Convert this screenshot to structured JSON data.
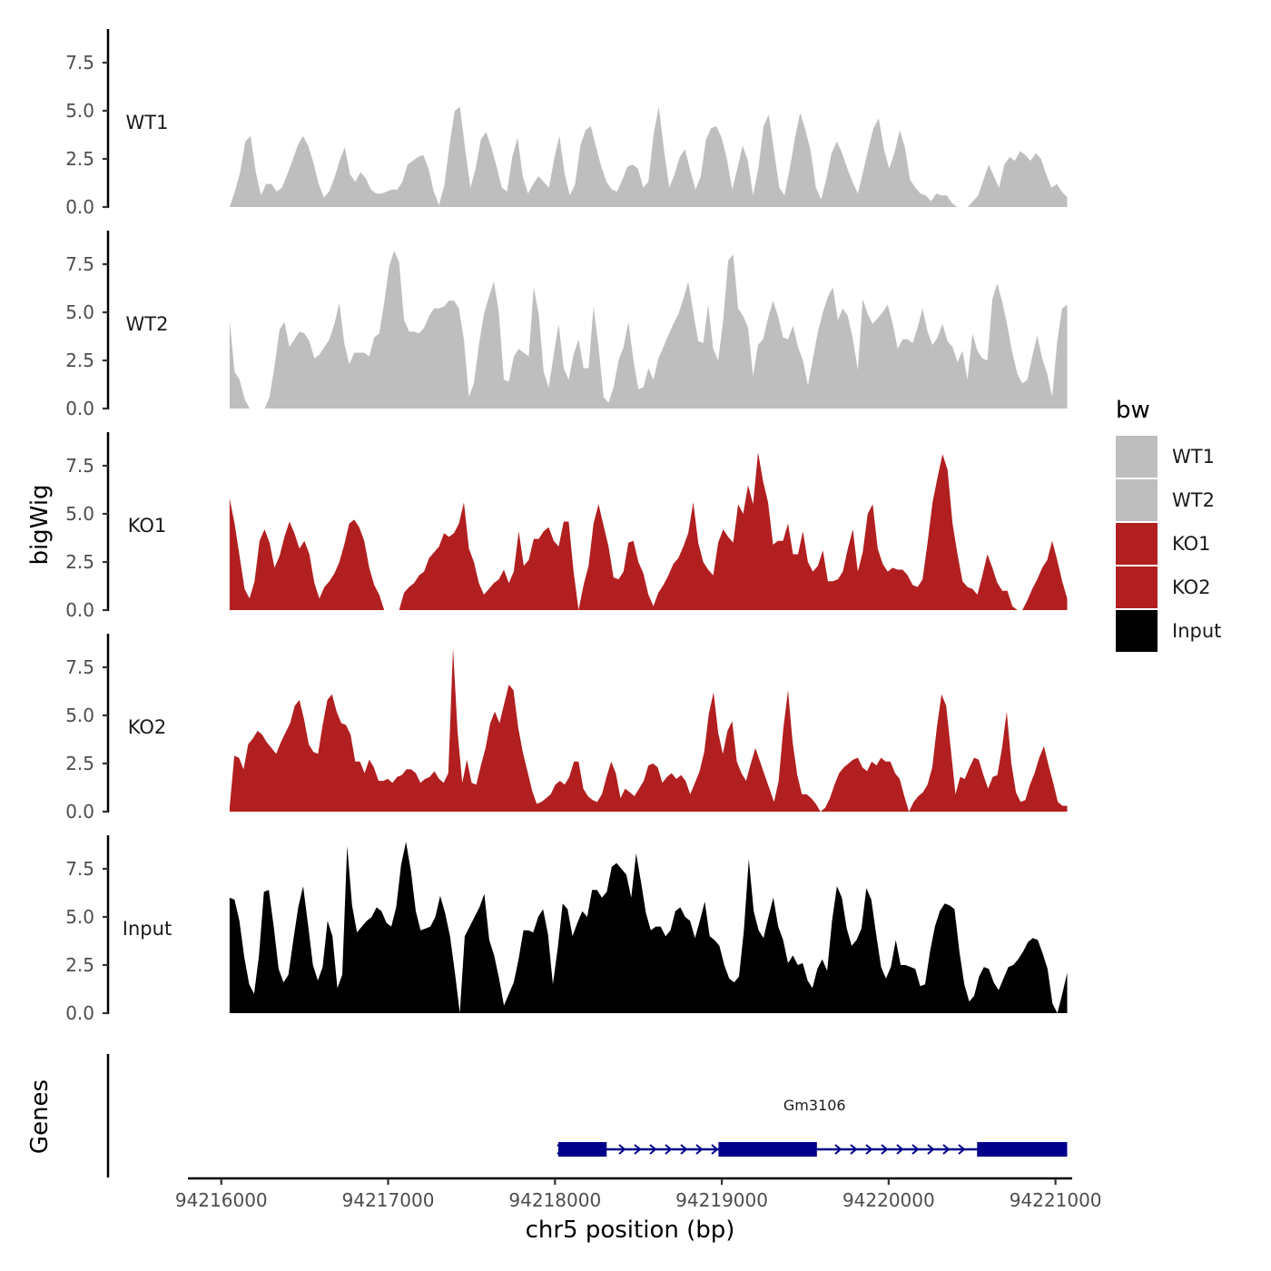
{
  "chart_data": {
    "type": "area",
    "title": "",
    "ylabel": "bigWig",
    "xlabel": "chr5 position (bp)",
    "genes_label": "Genes",
    "xlim": [
      94215800,
      94221100
    ],
    "x_ticks": [
      94216000,
      94217000,
      94218000,
      94219000,
      94220000,
      94221000
    ],
    "x_tick_labels": [
      "94216000",
      "94217000",
      "94218000",
      "94219000",
      "94220000",
      "94221000"
    ],
    "ylim": [
      0,
      9.3
    ],
    "y_ticks": [
      0,
      2.5,
      5,
      7.5
    ],
    "y_tick_labels": [
      "0.0",
      "2.5",
      "5.0",
      "7.5"
    ],
    "x_start": 94216050,
    "x_end": 94221070,
    "legend": {
      "title": "bw",
      "position": "right",
      "entries": [
        {
          "label": "WT1",
          "color": "#bebebe"
        },
        {
          "label": "WT2",
          "color": "#bebebe"
        },
        {
          "label": "KO1",
          "color": "#b21f20"
        },
        {
          "label": "KO2",
          "color": "#b21f20"
        },
        {
          "label": "Input",
          "color": "#000000"
        }
      ]
    },
    "series": [
      {
        "name": "WT1",
        "color": "#bebebe",
        "values": [
          0,
          0.8,
          1.8,
          3.4,
          3.7,
          1.8,
          0.6,
          1.2,
          1.2,
          0.8,
          1.0,
          1.7,
          2.4,
          3.2,
          3.7,
          3.2,
          2.3,
          1.2,
          0.5,
          0.8,
          1.5,
          2.4,
          3.1,
          1.7,
          1.3,
          1.8,
          1.5,
          0.9,
          0.7,
          0.7,
          0.8,
          0.9,
          0.9,
          1.3,
          2.2,
          2.4,
          2.6,
          2.7,
          2.0,
          0.8,
          0.1,
          1.1,
          3.2,
          5.0,
          5.2,
          3.0,
          1.0,
          2.0,
          3.5,
          3.9,
          3.1,
          2.1,
          1.0,
          0.8,
          2.6,
          3.6,
          1.6,
          0.7,
          1.2,
          1.6,
          1.3,
          1.0,
          2.5,
          3.7,
          1.7,
          0.6,
          1.2,
          3.2,
          4.0,
          4.2,
          3.1,
          2.1,
          1.3,
          0.9,
          0.8,
          1.4,
          2.1,
          2.2,
          2.0,
          1.0,
          1.3,
          3.8,
          5.2,
          2.9,
          1.0,
          1.7,
          2.6,
          3.0,
          1.9,
          0.9,
          1.6,
          3.5,
          4.1,
          4.2,
          3.6,
          2.5,
          0.9,
          2.0,
          3.2,
          2.4,
          0.6,
          2.0,
          4.2,
          4.8,
          2.9,
          1.0,
          0.6,
          2.0,
          3.6,
          4.9,
          4.0,
          2.9,
          1.0,
          0.4,
          1.5,
          2.8,
          3.4,
          2.8,
          2.0,
          1.3,
          0.7,
          1.8,
          3.0,
          4.1,
          4.6,
          3.0,
          2.0,
          2.8,
          4.0,
          3.1,
          1.4,
          1.0,
          0.7,
          0.6,
          0.3,
          0.7,
          0.6,
          0.6,
          0.2,
          0,
          0,
          0,
          0.3,
          0.6,
          1.4,
          2.2,
          1.6,
          1.0,
          2.2,
          2.6,
          2.4,
          2.9,
          2.7,
          2.4,
          2.8,
          2.5,
          1.7,
          1.0,
          1.2,
          0.8,
          0.5
        ]
      },
      {
        "name": "WT2",
        "color": "#bebebe",
        "values": [
          4.6,
          1.9,
          1.5,
          0.5,
          0,
          0,
          0,
          0,
          0.6,
          2.2,
          4.1,
          4.5,
          3.2,
          3.6,
          4.0,
          3.9,
          3.5,
          2.6,
          2.8,
          3.2,
          3.6,
          4.4,
          5.5,
          3.4,
          2.3,
          2.9,
          2.9,
          2.9,
          2.7,
          3.7,
          3.9,
          5.5,
          7.4,
          8.2,
          7.6,
          4.6,
          4.0,
          4.0,
          3.9,
          4.2,
          4.8,
          5.2,
          5.2,
          5.3,
          5.6,
          5.6,
          5.2,
          3.6,
          0.6,
          1.3,
          3.3,
          4.9,
          5.8,
          6.6,
          5.0,
          1.5,
          1.4,
          2.7,
          3.1,
          2.9,
          2.7,
          6.3,
          4.9,
          1.9,
          1.1,
          2.8,
          4.4,
          2.1,
          1.5,
          2.8,
          3.6,
          2.1,
          2.1,
          5.3,
          3.2,
          0.6,
          0.3,
          1.1,
          2.5,
          3.2,
          4.5,
          2.5,
          1.0,
          1.1,
          2.1,
          1.5,
          2.6,
          3.2,
          3.8,
          4.4,
          4.9,
          5.7,
          6.6,
          5.0,
          3.5,
          3.4,
          5.4,
          3.1,
          2.5,
          4.6,
          7.7,
          8.0,
          5.2,
          4.8,
          4.2,
          1.7,
          3.3,
          3.6,
          4.7,
          5.6,
          4.8,
          3.7,
          3.6,
          4.3,
          3.2,
          2.5,
          1.2,
          2.6,
          4.0,
          5.0,
          5.8,
          6.3,
          4.6,
          5.2,
          4.8,
          3.6,
          2.0,
          5.7,
          4.9,
          4.4,
          4.7,
          5.0,
          5.4,
          4.4,
          3.1,
          3.6,
          3.6,
          3.4,
          4.2,
          5.2,
          4.0,
          3.3,
          3.7,
          4.4,
          3.5,
          3.2,
          2.4,
          3.0,
          1.5,
          3.9,
          3.0,
          2.6,
          2.5,
          5.7,
          6.5,
          5.5,
          4.3,
          2.9,
          1.8,
          1.3,
          1.5,
          2.7,
          3.8,
          2.6,
          1.8,
          0.6,
          3.5,
          5.2,
          5.4
        ]
      },
      {
        "name": "KO1",
        "color": "#b21f20",
        "values": [
          5.8,
          4.5,
          2.8,
          1.1,
          0.6,
          1.5,
          3.6,
          4.2,
          3.5,
          2.2,
          2.8,
          3.8,
          4.6,
          4.0,
          3.2,
          3.6,
          2.9,
          1.4,
          0.6,
          1.2,
          1.5,
          1.9,
          2.5,
          3.4,
          4.5,
          4.7,
          4.3,
          3.6,
          2.2,
          1.3,
          0.8,
          0,
          0,
          0,
          0,
          0.9,
          1.2,
          1.4,
          1.8,
          2.0,
          2.7,
          3.0,
          3.3,
          4.0,
          3.8,
          4.0,
          4.5,
          5.6,
          3.2,
          2.5,
          1.4,
          0.8,
          1.1,
          1.4,
          1.6,
          2.1,
          1.4,
          2.0,
          4.1,
          2.3,
          2.6,
          3.7,
          3.7,
          4.1,
          4.3,
          3.6,
          3.3,
          4.6,
          4.6,
          2.0,
          0,
          1.3,
          2.3,
          4.5,
          5.5,
          4.4,
          3.3,
          1.7,
          1.6,
          2.0,
          3.5,
          3.6,
          2.5,
          1.9,
          0.8,
          0.2,
          0.9,
          1.3,
          1.8,
          2.4,
          2.7,
          3.3,
          4.0,
          5.6,
          3.5,
          2.5,
          2.1,
          1.8,
          3.5,
          4.2,
          3.8,
          3.5,
          5.5,
          5.0,
          6.5,
          5.5,
          8.2,
          6.7,
          5.6,
          3.4,
          3.6,
          3.6,
          4.5,
          2.9,
          2.9,
          4.1,
          2.5,
          2.0,
          2.3,
          3.1,
          1.5,
          1.5,
          1.6,
          2.0,
          3.2,
          4.2,
          2.0,
          3.0,
          5.0,
          5.5,
          3.2,
          2.4,
          2.0,
          2.2,
          2.1,
          2.1,
          1.8,
          1.3,
          1.2,
          1.6,
          3.5,
          5.6,
          6.9,
          8.1,
          7.3,
          4.5,
          2.9,
          1.5,
          1.2,
          1.1,
          0.8,
          1.8,
          2.9,
          2.2,
          1.4,
          1.0,
          1.0,
          0.2,
          0,
          0,
          0.5,
          1.1,
          1.6,
          2.2,
          2.6,
          3.6,
          2.6,
          1.5,
          0.6
        ]
      },
      {
        "name": "KO2",
        "color": "#b21f20",
        "values": [
          0.2,
          2.9,
          2.8,
          2.2,
          3.5,
          3.8,
          4.2,
          4.0,
          3.6,
          3.3,
          3.0,
          3.6,
          4.1,
          4.6,
          5.5,
          5.8,
          4.8,
          3.5,
          3.1,
          3.0,
          4.5,
          5.8,
          6.1,
          5.2,
          4.6,
          4.5,
          4.0,
          2.6,
          2.6,
          2.0,
          2.7,
          2.3,
          1.6,
          1.6,
          1.7,
          1.5,
          1.8,
          1.9,
          2.2,
          2.2,
          2.0,
          1.5,
          1.7,
          1.8,
          2.1,
          1.7,
          1.5,
          2.0,
          8.5,
          4.1,
          1.5,
          2.7,
          1.5,
          1.4,
          2.4,
          3.3,
          4.6,
          5.2,
          4.6,
          5.6,
          6.6,
          6.3,
          4.4,
          3.1,
          2.1,
          1.1,
          0.4,
          0.5,
          0.7,
          0.9,
          1.4,
          1.6,
          1.4,
          1.8,
          2.6,
          2.6,
          1.2,
          0.8,
          0.6,
          0.5,
          0.9,
          1.8,
          2.6,
          2.0,
          0.7,
          1.2,
          1.0,
          0.8,
          1.2,
          1.6,
          2.4,
          2.5,
          2.3,
          1.5,
          1.8,
          2.0,
          1.7,
          1.9,
          1.6,
          0.9,
          1.5,
          2.1,
          3.1,
          5.1,
          6.2,
          4.1,
          3.0,
          4.2,
          4.7,
          2.6,
          2.0,
          1.6,
          2.5,
          3.3,
          2.6,
          1.9,
          1.2,
          0.5,
          1.6,
          4.3,
          6.3,
          3.6,
          1.9,
          0.9,
          0.9,
          0.7,
          0.4,
          0,
          0.2,
          0.7,
          1.4,
          2.0,
          2.3,
          2.5,
          2.7,
          2.8,
          2.3,
          2.1,
          2.6,
          2.4,
          2.8,
          2.6,
          2.6,
          2.0,
          1.7,
          0.8,
          0,
          0.5,
          0.8,
          1.0,
          1.4,
          2.3,
          4.4,
          6.1,
          5.5,
          3.2,
          0.9,
          1.8,
          1.7,
          2.3,
          2.8,
          2.7,
          1.9,
          1.2,
          1.8,
          1.9,
          3.3,
          5.2,
          2.5,
          1.0,
          0.5,
          0.6,
          1.4,
          2.0,
          2.8,
          3.4,
          2.4,
          1.5,
          0.5,
          0.3,
          0.3
        ]
      },
      {
        "name": "Input",
        "color": "#000000",
        "values": [
          6.0,
          5.9,
          4.8,
          2.9,
          1.5,
          1.0,
          3.0,
          6.3,
          6.4,
          4.5,
          2.3,
          1.6,
          2.0,
          3.8,
          5.5,
          6.6,
          4.6,
          2.5,
          1.7,
          2.4,
          4.8,
          4.0,
          1.3,
          2.0,
          8.7,
          5.6,
          4.2,
          4.5,
          4.8,
          5.0,
          5.5,
          5.3,
          4.7,
          4.5,
          5.5,
          7.7,
          8.9,
          7.4,
          5.3,
          4.3,
          4.4,
          4.5,
          5.0,
          6.1,
          5.2,
          4.0,
          2.1,
          0,
          4.0,
          4.5,
          5.0,
          5.5,
          6.2,
          3.8,
          3.0,
          1.8,
          0.4,
          1.0,
          1.6,
          2.8,
          4.3,
          4.3,
          4.2,
          5.0,
          5.4,
          4.1,
          1.5,
          3.4,
          5.7,
          5.4,
          4.0,
          4.7,
          5.3,
          5.0,
          6.4,
          6.4,
          6.0,
          6.3,
          7.6,
          7.8,
          7.5,
          7.2,
          6.0,
          8.3,
          6.8,
          5.2,
          4.3,
          4.5,
          4.5,
          4.0,
          4.3,
          5.3,
          5.5,
          5.0,
          4.8,
          3.9,
          4.8,
          5.8,
          4.0,
          3.8,
          3.5,
          2.5,
          1.8,
          1.6,
          1.9,
          4.3,
          8.0,
          5.3,
          4.3,
          3.9,
          5.0,
          6.0,
          4.5,
          3.8,
          2.6,
          3.0,
          2.5,
          2.6,
          1.7,
          1.3,
          2.3,
          2.8,
          2.2,
          4.8,
          6.6,
          6.0,
          4.4,
          3.5,
          3.8,
          4.4,
          6.5,
          5.9,
          4.1,
          2.4,
          1.8,
          2.4,
          3.8,
          2.5,
          2.5,
          2.4,
          2.3,
          1.4,
          1.5,
          3.2,
          4.5,
          5.3,
          5.7,
          5.6,
          5.4,
          3.2,
          1.5,
          0.6,
          0.9,
          1.9,
          2.4,
          2.3,
          1.6,
          1.2,
          1.8,
          2.4,
          2.5,
          2.8,
          3.2,
          3.7,
          3.9,
          3.8,
          3.1,
          2.3,
          0.5,
          0,
          1.0,
          2.1
        ]
      }
    ],
    "genes": [
      {
        "name": "Gm3106",
        "strand": "+",
        "start": 94218020,
        "end": 94221070,
        "exons": [
          [
            94218020,
            94218310
          ],
          [
            94218980,
            94219570
          ],
          [
            94220530,
            94221070
          ]
        ]
      }
    ]
  }
}
